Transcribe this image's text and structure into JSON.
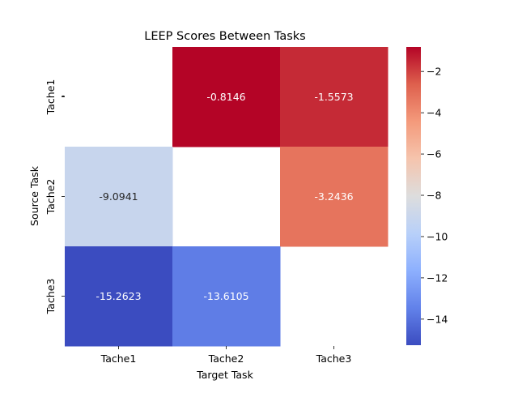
{
  "chart_data": {
    "type": "heatmap",
    "title": "LEEP Scores Between Tasks",
    "xlabel": "Target Task",
    "ylabel": "Source Task",
    "x_categories": [
      "Tache1",
      "Tache2",
      "Tache3"
    ],
    "y_categories": [
      "Tache1",
      "Tache2",
      "Tache3"
    ],
    "values": [
      [
        null,
        -0.8146,
        -1.5573
      ],
      [
        -9.0941,
        null,
        -3.2436
      ],
      [
        -15.2623,
        -13.6105,
        null
      ]
    ],
    "value_labels": [
      [
        "",
        "-0.8146",
        "-1.5573"
      ],
      [
        "-9.0941",
        "",
        "-3.2436"
      ],
      [
        "-15.2623",
        "-13.6105",
        ""
      ]
    ],
    "colormap": "coolwarm",
    "colorbar": {
      "vmin": -15.2623,
      "vmax": -0.8146,
      "ticks": [
        -2,
        -4,
        -6,
        -8,
        -10,
        -12,
        -14
      ],
      "tick_labels": [
        "−2",
        "−4",
        "−6",
        "−8",
        "−10",
        "−12",
        "−14"
      ]
    },
    "y_stray_tick_label": "-"
  }
}
